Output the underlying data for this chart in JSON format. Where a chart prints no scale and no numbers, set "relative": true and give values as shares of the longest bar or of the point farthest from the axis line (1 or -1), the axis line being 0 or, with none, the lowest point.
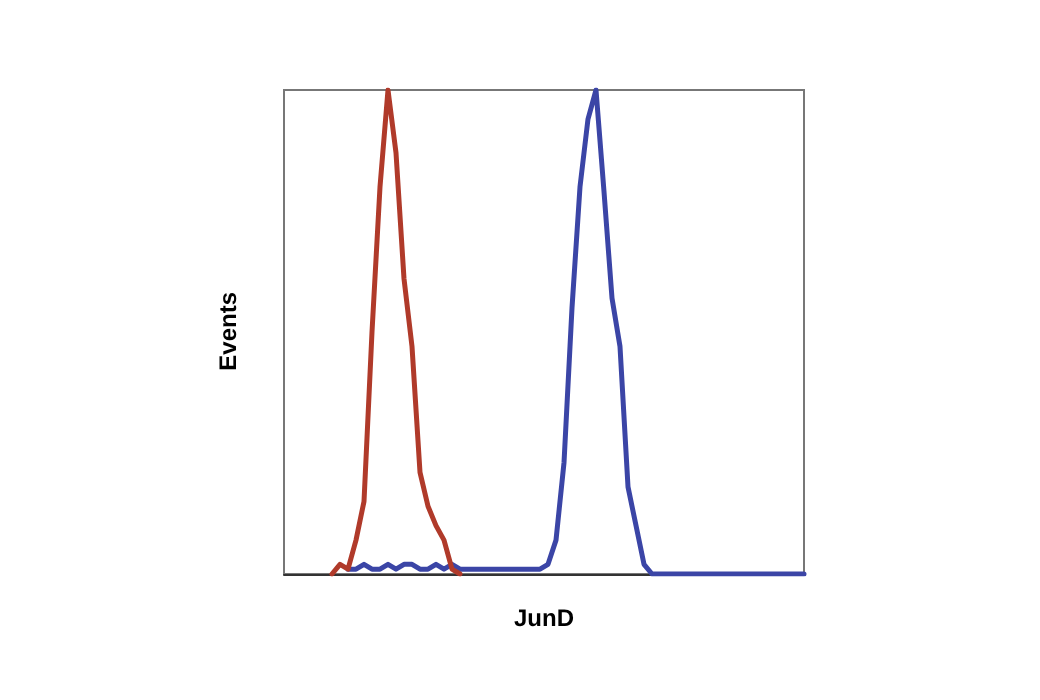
{
  "chart_data": {
    "type": "line",
    "xlabel": "JunD",
    "ylabel": "Events",
    "relative": true,
    "line_style": "solid",
    "categories": [
      null,
      null,
      null,
      null,
      null,
      null,
      null,
      null,
      null,
      null,
      null,
      null,
      null,
      null,
      null,
      null,
      null,
      null,
      null,
      null,
      null,
      null,
      null,
      null,
      null,
      null,
      null,
      null,
      null,
      null,
      null,
      null,
      null,
      null,
      null,
      null,
      null,
      null,
      null,
      null,
      null,
      null,
      null,
      null,
      null,
      null,
      null,
      null,
      null,
      null,
      null,
      null,
      null,
      null,
      null,
      null,
      null,
      null,
      null,
      null,
      null,
      null,
      null,
      null,
      null,
      null
    ],
    "series": [
      {
        "color": "#3b45a6",
        "values": [
          null,
          null,
          null,
          null,
          null,
          null,
          null,
          null,
          0.01,
          0.01,
          0.02,
          0.01,
          0.01,
          0.02,
          0.01,
          0.02,
          0.02,
          0.01,
          0.01,
          0.02,
          0.01,
          0.02,
          0.01,
          0.01,
          0.01,
          0.01,
          0.01,
          0.01,
          0.01,
          0.01,
          0.01,
          0.01,
          0.01,
          0.02,
          0.07,
          0.23,
          0.55,
          0.8,
          0.94,
          1,
          0.79,
          0.57,
          0.47,
          0.18,
          0.1,
          0.02,
          0,
          0,
          0,
          0,
          0,
          0,
          0,
          0,
          0,
          0,
          0,
          0,
          0,
          0,
          0,
          0,
          0,
          0,
          0,
          0
        ]
      },
      {
        "color": "#b03a2a",
        "values": [
          null,
          null,
          null,
          null,
          null,
          null,
          0,
          0.02,
          0.01,
          0.07,
          0.15,
          0.5,
          0.8,
          1,
          0.87,
          0.61,
          0.47,
          0.21,
          0.14,
          0.1,
          0.07,
          0.01,
          0,
          null,
          null,
          null,
          null,
          null,
          null,
          null,
          null,
          null,
          null,
          null,
          null,
          null,
          null,
          null,
          null,
          null,
          null,
          null,
          null,
          null,
          null,
          null,
          null,
          null,
          null,
          null,
          null,
          null,
          null,
          null,
          null,
          null,
          null,
          null,
          null,
          null,
          null,
          null,
          null,
          null,
          null,
          null
        ]
      }
    ]
  }
}
